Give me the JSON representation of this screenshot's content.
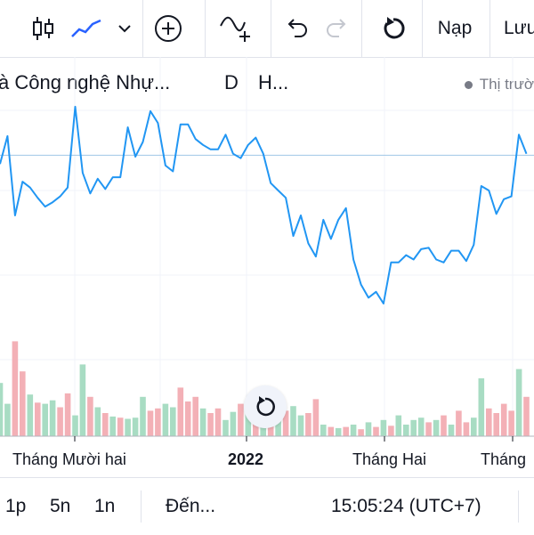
{
  "toolbar": {
    "refresh_label": "Nạp",
    "save_label": "Lưu"
  },
  "legend": {
    "symbol_name": "à Công nghệ Nhự...",
    "interval": "D",
    "exchange": "H...",
    "status": "Thị trườ"
  },
  "bottom": {
    "range_1": "1p",
    "range_2": "5n",
    "range_3": "1n",
    "goto_label": "Đến...",
    "clock": "15:05:24 (UTC+7)"
  },
  "colors": {
    "line": "#2196f3",
    "volume_up": "#a8dcc3",
    "volume_down": "#f3b0b6",
    "last_price_line": "#9fc7e6"
  },
  "chart_data": {
    "type": "line",
    "x_tick_labels": [
      "Tháng Mười hai",
      "2022",
      "Tháng Hai",
      "Tháng"
    ],
    "price": [
      115,
      134,
      80,
      103,
      99,
      92,
      86,
      89,
      93,
      99,
      154,
      109,
      95,
      105,
      98,
      106,
      106,
      140,
      120,
      130,
      151,
      143,
      114,
      110,
      142,
      142,
      132,
      128,
      125,
      125,
      135,
      122,
      119,
      128,
      133,
      122,
      102,
      97,
      92,
      66,
      80,
      61,
      52,
      77,
      64,
      77,
      85,
      50,
      33,
      24,
      28,
      20,
      48,
      48,
      53,
      50,
      57,
      58,
      50,
      48,
      56,
      56,
      49,
      60,
      100,
      97,
      81,
      91,
      93,
      135,
      122
    ],
    "volume": [
      {
        "v": 46,
        "up": true
      },
      {
        "v": 28,
        "up": true
      },
      {
        "v": 82,
        "up": false
      },
      {
        "v": 56,
        "up": false
      },
      {
        "v": 36,
        "up": true
      },
      {
        "v": 29,
        "up": false
      },
      {
        "v": 28,
        "up": true
      },
      {
        "v": 31,
        "up": true
      },
      {
        "v": 25,
        "up": false
      },
      {
        "v": 37,
        "up": false
      },
      {
        "v": 18,
        "up": true
      },
      {
        "v": 62,
        "up": true
      },
      {
        "v": 34,
        "up": false
      },
      {
        "v": 25,
        "up": true
      },
      {
        "v": 20,
        "up": false
      },
      {
        "v": 17,
        "up": true
      },
      {
        "v": 16,
        "up": false
      },
      {
        "v": 15,
        "up": true
      },
      {
        "v": 16,
        "up": true
      },
      {
        "v": 34,
        "up": true
      },
      {
        "v": 22,
        "up": false
      },
      {
        "v": 24,
        "up": false
      },
      {
        "v": 28,
        "up": true
      },
      {
        "v": 25,
        "up": true
      },
      {
        "v": 42,
        "up": false
      },
      {
        "v": 30,
        "up": false
      },
      {
        "v": 34,
        "up": false
      },
      {
        "v": 24,
        "up": true
      },
      {
        "v": 20,
        "up": false
      },
      {
        "v": 24,
        "up": false
      },
      {
        "v": 14,
        "up": true
      },
      {
        "v": 21,
        "up": true
      },
      {
        "v": 28,
        "up": false
      },
      {
        "v": 23,
        "up": true
      },
      {
        "v": 22,
        "up": false
      },
      {
        "v": 22,
        "up": true
      },
      {
        "v": 30,
        "up": false
      },
      {
        "v": 28,
        "up": true
      },
      {
        "v": 22,
        "up": false
      },
      {
        "v": 26,
        "up": true
      },
      {
        "v": 18,
        "up": true
      },
      {
        "v": 20,
        "up": false
      },
      {
        "v": 32,
        "up": false
      },
      {
        "v": 10,
        "up": true
      },
      {
        "v": 8,
        "up": false
      },
      {
        "v": 7,
        "up": true
      },
      {
        "v": 8,
        "up": false
      },
      {
        "v": 10,
        "up": true
      },
      {
        "v": 6,
        "up": false
      },
      {
        "v": 12,
        "up": true
      },
      {
        "v": 8,
        "up": false
      },
      {
        "v": 14,
        "up": true
      },
      {
        "v": 9,
        "up": false
      },
      {
        "v": 18,
        "up": true
      },
      {
        "v": 10,
        "up": true
      },
      {
        "v": 14,
        "up": true
      },
      {
        "v": 16,
        "up": true
      },
      {
        "v": 12,
        "up": false
      },
      {
        "v": 14,
        "up": true
      },
      {
        "v": 18,
        "up": false
      },
      {
        "v": 10,
        "up": true
      },
      {
        "v": 22,
        "up": false
      },
      {
        "v": 12,
        "up": false
      },
      {
        "v": 16,
        "up": true
      },
      {
        "v": 50,
        "up": true
      },
      {
        "v": 24,
        "up": false
      },
      {
        "v": 20,
        "up": false
      },
      {
        "v": 28,
        "up": false
      },
      {
        "v": 22,
        "up": false
      },
      {
        "v": 58,
        "up": true
      },
      {
        "v": 34,
        "up": false
      }
    ]
  }
}
